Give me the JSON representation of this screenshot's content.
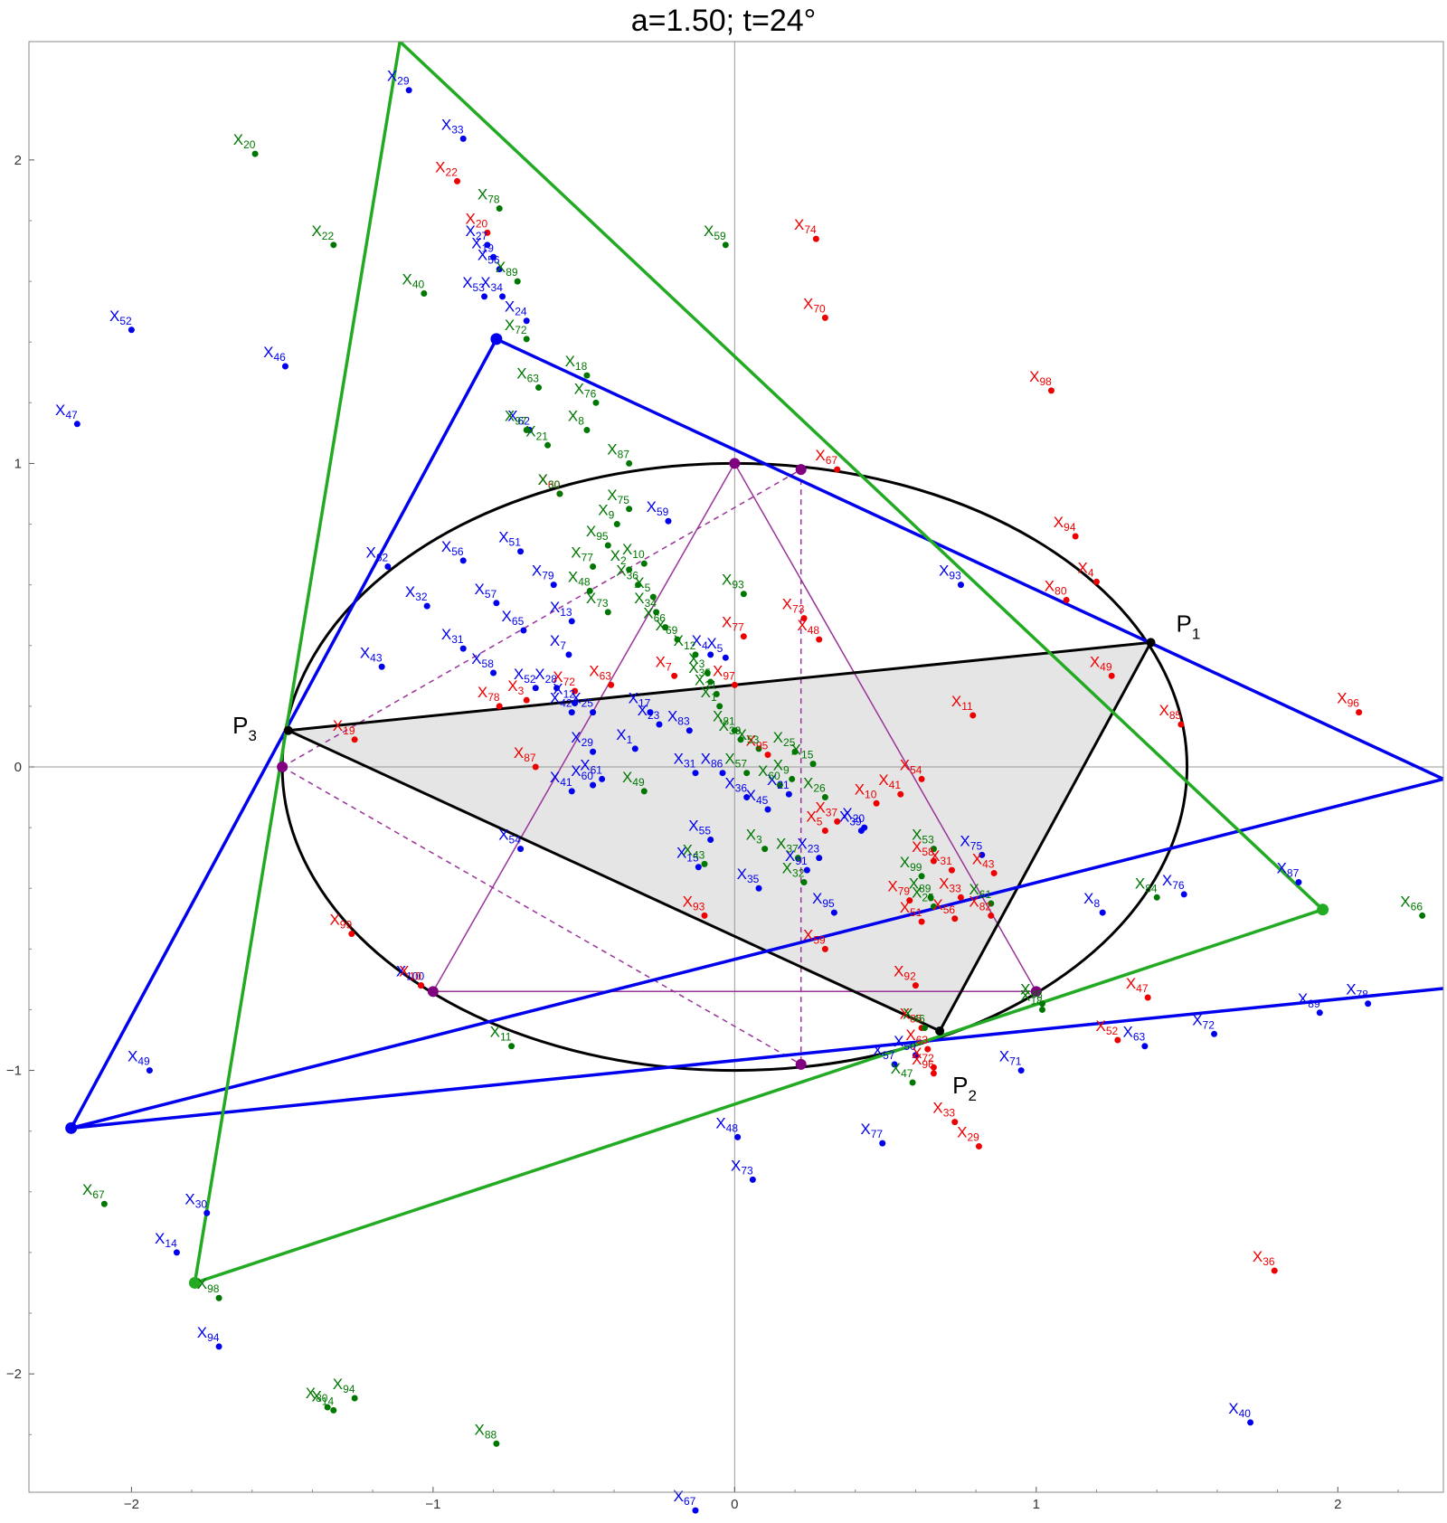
{
  "title": "a=1.50; t=24°",
  "axes": {
    "x_ticks": [
      {
        "v": -2,
        "label": "−2"
      },
      {
        "v": -1,
        "label": "−1"
      },
      {
        "v": 0,
        "label": "0"
      },
      {
        "v": 1,
        "label": "1"
      },
      {
        "v": 2,
        "label": "2"
      }
    ],
    "y_ticks": [
      {
        "v": 2,
        "label": "2"
      },
      {
        "v": 1,
        "label": "1"
      },
      {
        "v": 0,
        "label": "0"
      },
      {
        "v": -1,
        "label": "−1"
      },
      {
        "v": -2,
        "label": "−2"
      }
    ],
    "x_range": [
      -2.34,
      2.35
    ],
    "y_range": [
      -2.39,
      2.39
    ]
  },
  "colors": {
    "blue": "#0000ee",
    "red": "#ee0000",
    "green": "#007700",
    "black": "#000000",
    "purple": "#993399",
    "fill": "#e5e5e5",
    "axis": "#999999"
  },
  "vertices": [
    {
      "base": "P",
      "sub": "1",
      "x": 1.38,
      "y": 0.41
    },
    {
      "base": "P",
      "sub": "2",
      "x": 0.68,
      "y": -1.01
    },
    {
      "base": "P",
      "sub": "3",
      "x": -1.5,
      "y": 0.11
    }
  ],
  "ellipse": {
    "a": 1.5,
    "b": 1.0
  },
  "triangle": [
    [
      1.38,
      0.41
    ],
    [
      0.68,
      -0.87
    ],
    [
      -1.48,
      0.12
    ]
  ],
  "blue_triangle": [
    [
      -0.79,
      1.41
    ],
    [
      2.35,
      -0.04
    ],
    [
      -2.2,
      -1.19
    ]
  ],
  "blue_extra_line": [
    [
      -2.2,
      -1.19
    ],
    [
      2.35,
      -0.73
    ]
  ],
  "green_triangle": [
    [
      -1.11,
      2.39
    ],
    [
      1.95,
      -0.47
    ],
    [
      -1.79,
      -1.7
    ]
  ],
  "purple_triangle": [
    [
      0.0,
      1.0
    ],
    [
      1.0,
      -0.74
    ],
    [
      -1.0,
      -0.74
    ]
  ],
  "purple_dashed": [
    [
      [
        -1.5,
        0.0
      ],
      [
        0.22,
        0.98
      ]
    ],
    [
      [
        -1.5,
        0.0
      ],
      [
        0.22,
        -0.98
      ]
    ],
    [
      [
        0.22,
        0.98
      ],
      [
        0.22,
        -0.98
      ]
    ]
  ],
  "purple_points": [
    [
      0.0,
      1.0
    ],
    [
      0.22,
      0.98
    ],
    [
      1.0,
      -0.74
    ],
    [
      -1.0,
      -0.74
    ],
    [
      -1.5,
      0.0
    ],
    [
      0.22,
      -0.98
    ]
  ],
  "corner_dots_blue": [
    [
      -0.79,
      1.41
    ],
    [
      -2.2,
      -1.19
    ]
  ],
  "corner_dots_green": [
    [
      1.95,
      -0.47
    ],
    [
      -1.79,
      -1.7
    ]
  ],
  "black_dots": [
    [
      1.38,
      0.41
    ],
    [
      -1.48,
      0.12
    ],
    [
      0.68,
      -0.87
    ]
  ],
  "points": {
    "blue": [
      [
        "29",
        -1.08,
        2.23
      ],
      [
        "33",
        -0.9,
        2.07
      ],
      [
        "27",
        -0.82,
        1.72
      ],
      [
        "19",
        -0.8,
        1.68
      ],
      [
        "56",
        -0.78,
        1.64
      ],
      [
        "53",
        -0.83,
        1.55
      ],
      [
        "34",
        -0.77,
        1.55
      ],
      [
        "24",
        -0.69,
        1.47
      ],
      [
        "52",
        -2.0,
        1.44
      ],
      [
        "46",
        -1.49,
        1.32
      ],
      [
        "47",
        -2.18,
        1.13
      ],
      [
        "62",
        -0.68,
        1.11
      ],
      [
        "59",
        -0.22,
        0.81
      ],
      [
        "51",
        -0.71,
        0.71
      ],
      [
        "56",
        -0.9,
        0.68
      ],
      [
        "79",
        -0.6,
        0.6
      ],
      [
        "57",
        -0.79,
        0.54
      ],
      [
        "65",
        -0.7,
        0.45
      ],
      [
        "13",
        -0.54,
        0.48
      ],
      [
        "7",
        -0.55,
        0.37
      ],
      [
        "62",
        -1.15,
        0.66
      ],
      [
        "32",
        -1.02,
        0.53
      ],
      [
        "31",
        -0.9,
        0.39
      ],
      [
        "43",
        -1.17,
        0.33
      ],
      [
        "58",
        -0.8,
        0.31
      ],
      [
        "52",
        -0.66,
        0.26
      ],
      [
        "28",
        -0.59,
        0.26
      ],
      [
        "12",
        -0.53,
        0.21
      ],
      [
        "42",
        -0.54,
        0.18
      ],
      [
        "25",
        -0.47,
        0.18
      ],
      [
        "17",
        -0.28,
        0.18
      ],
      [
        "23",
        -0.25,
        0.14
      ],
      [
        "83",
        -0.15,
        0.12
      ],
      [
        "4",
        -0.08,
        0.37
      ],
      [
        "5",
        -0.03,
        0.36
      ],
      [
        "29",
        -0.47,
        0.05
      ],
      [
        "1",
        -0.33,
        0.06
      ],
      [
        "61",
        -0.44,
        -0.04
      ],
      [
        "60",
        -0.47,
        -0.06
      ],
      [
        "41",
        -0.54,
        -0.08
      ],
      [
        "31",
        -0.13,
        -0.02
      ],
      [
        "86",
        -0.04,
        -0.02
      ],
      [
        "36",
        0.04,
        -0.1
      ],
      [
        "45",
        0.11,
        -0.14
      ],
      [
        "21",
        0.18,
        -0.09
      ],
      [
        "55",
        -0.08,
        -0.24
      ],
      [
        "15",
        -0.12,
        -0.33
      ],
      [
        "35",
        0.08,
        -0.4
      ],
      [
        "54",
        -0.71,
        -0.27
      ],
      [
        "23",
        0.28,
        -0.3
      ],
      [
        "91",
        0.24,
        -0.34
      ],
      [
        "95",
        0.33,
        -0.48
      ],
      [
        "39",
        0.42,
        -0.21
      ],
      [
        "20",
        0.43,
        -0.2
      ],
      [
        "75",
        0.82,
        -0.29
      ],
      [
        "93",
        0.75,
        0.6
      ],
      [
        "8",
        1.22,
        -0.48
      ],
      [
        "76",
        1.49,
        -0.42
      ],
      [
        "87",
        1.87,
        -0.38
      ],
      [
        "78",
        2.1,
        -0.78
      ],
      [
        "89",
        1.94,
        -0.81
      ],
      [
        "72",
        1.59,
        -0.88
      ],
      [
        "63",
        1.36,
        -0.92
      ],
      [
        "71",
        0.95,
        -1.0
      ],
      [
        "57",
        0.53,
        -0.98
      ],
      [
        "50",
        0.6,
        -0.95
      ],
      [
        "48",
        0.01,
        -1.22
      ],
      [
        "73",
        0.06,
        -1.36
      ],
      [
        "77",
        0.49,
        -1.24
      ],
      [
        "67",
        -0.13,
        -2.45
      ],
      [
        "40",
        1.71,
        -2.16
      ],
      [
        "100",
        -1.04,
        -0.72
      ],
      [
        "30",
        -1.75,
        -1.47
      ],
      [
        "14",
        -1.85,
        -1.6
      ],
      [
        "94",
        -1.71,
        -1.91
      ],
      [
        "49",
        -1.94,
        -1.0
      ]
    ],
    "red": [
      [
        "22",
        -0.92,
        1.93
      ],
      [
        "20",
        -0.82,
        1.76
      ],
      [
        "74",
        0.27,
        1.74
      ],
      [
        "70",
        0.3,
        1.48
      ],
      [
        "98",
        1.05,
        1.24
      ],
      [
        "60",
        -0.58,
        0.9
      ],
      [
        "67",
        0.34,
        0.98
      ],
      [
        "94",
        1.13,
        0.76
      ],
      [
        "4",
        1.2,
        0.61
      ],
      [
        "80",
        1.1,
        0.55
      ],
      [
        "73",
        0.23,
        0.49
      ],
      [
        "48",
        0.28,
        0.42
      ],
      [
        "77",
        0.03,
        0.43
      ],
      [
        "7",
        -0.2,
        0.3
      ],
      [
        "97",
        0.0,
        0.27
      ],
      [
        "49",
        1.25,
        0.3
      ],
      [
        "96",
        2.07,
        0.18
      ],
      [
        "85",
        1.48,
        0.14
      ],
      [
        "11",
        0.79,
        0.17
      ],
      [
        "19",
        -1.26,
        0.09
      ],
      [
        "78",
        -0.78,
        0.2
      ],
      [
        "3",
        -0.69,
        0.22
      ],
      [
        "72",
        -0.53,
        0.25
      ],
      [
        "63",
        -0.41,
        0.27
      ],
      [
        "87",
        -0.66,
        0.0
      ],
      [
        "95",
        0.11,
        0.04
      ],
      [
        "54",
        0.62,
        -0.04
      ],
      [
        "41",
        0.55,
        -0.09
      ],
      [
        "10",
        0.47,
        -0.12
      ],
      [
        "37",
        0.34,
        -0.18
      ],
      [
        "5",
        0.3,
        -0.21
      ],
      [
        "58",
        0.66,
        -0.31
      ],
      [
        "31",
        0.72,
        -0.34
      ],
      [
        "43",
        0.86,
        -0.35
      ],
      [
        "33",
        0.75,
        -0.43
      ],
      [
        "79",
        0.58,
        -0.44
      ],
      [
        "51",
        0.62,
        -0.51
      ],
      [
        "56",
        0.73,
        -0.5
      ],
      [
        "82",
        0.85,
        -0.49
      ],
      [
        "59",
        0.3,
        -0.6
      ],
      [
        "93",
        -0.1,
        -0.49
      ],
      [
        "92",
        0.6,
        -0.72
      ],
      [
        "99",
        -1.27,
        -0.55
      ],
      [
        "47",
        1.37,
        -0.76
      ],
      [
        "52",
        1.27,
        -0.9
      ],
      [
        "63",
        0.64,
        -0.93
      ],
      [
        "33",
        0.73,
        -1.17
      ],
      [
        "29",
        0.81,
        -1.25
      ],
      [
        "36",
        1.79,
        -1.66
      ],
      [
        "10",
        -1.04,
        -0.72
      ],
      [
        "85",
        0.62,
        -0.86
      ],
      [
        "72",
        0.66,
        -0.99
      ],
      [
        "96",
        0.66,
        -1.01
      ]
    ],
    "green": [
      [
        "20",
        -1.59,
        2.02
      ],
      [
        "22",
        -1.33,
        1.72
      ],
      [
        "78",
        -0.78,
        1.84
      ],
      [
        "59",
        -0.03,
        1.72
      ],
      [
        "40",
        -1.03,
        1.56
      ],
      [
        "89",
        -0.72,
        1.6
      ],
      [
        "72",
        -0.69,
        1.41
      ],
      [
        "18",
        -0.49,
        1.29
      ],
      [
        "63",
        -0.65,
        1.25
      ],
      [
        "76",
        -0.46,
        1.2
      ],
      [
        "8",
        -0.49,
        1.11
      ],
      [
        "97",
        -0.69,
        1.11
      ],
      [
        "21",
        -0.62,
        1.06
      ],
      [
        "87",
        -0.35,
        1.0
      ],
      [
        "30",
        -0.58,
        0.9
      ],
      [
        "75",
        -0.35,
        0.85
      ],
      [
        "9",
        -0.39,
        0.8
      ],
      [
        "95",
        -0.42,
        0.73
      ],
      [
        "77",
        -0.47,
        0.66
      ],
      [
        "10",
        -0.3,
        0.67
      ],
      [
        "2",
        -0.35,
        0.65
      ],
      [
        "48",
        -0.48,
        0.58
      ],
      [
        "36",
        -0.32,
        0.6
      ],
      [
        "73",
        -0.42,
        0.51
      ],
      [
        "93",
        0.03,
        0.57
      ],
      [
        "5",
        -0.27,
        0.56
      ],
      [
        "34",
        -0.26,
        0.51
      ],
      [
        "66",
        -0.23,
        0.46
      ],
      [
        "69",
        -0.19,
        0.42
      ],
      [
        "12",
        -0.13,
        0.37
      ],
      [
        "3",
        -0.09,
        0.31
      ],
      [
        "35",
        -0.08,
        0.28
      ],
      [
        "21",
        -0.06,
        0.24
      ],
      [
        "1",
        -0.05,
        0.2
      ],
      [
        "81",
        0.0,
        0.12
      ],
      [
        "39",
        0.02,
        0.09
      ],
      [
        "53",
        0.08,
        0.06
      ],
      [
        "25",
        0.2,
        0.05
      ],
      [
        "15",
        0.26,
        0.01
      ],
      [
        "57",
        0.04,
        -0.02
      ],
      [
        "60",
        0.15,
        -0.06
      ],
      [
        "9",
        0.19,
        -0.04
      ],
      [
        "26",
        0.3,
        -0.1
      ],
      [
        "43",
        -0.1,
        -0.32
      ],
      [
        "3",
        0.1,
        -0.27
      ],
      [
        "37",
        0.21,
        -0.3
      ],
      [
        "32",
        0.23,
        -0.38
      ],
      [
        "49",
        -0.3,
        -0.08
      ],
      [
        "53",
        0.66,
        -0.27
      ],
      [
        "99",
        0.62,
        -0.36
      ],
      [
        "89",
        0.65,
        -0.43
      ],
      [
        "25",
        0.66,
        -0.46
      ],
      [
        "61",
        0.85,
        -0.45
      ],
      [
        "84",
        1.4,
        -0.43
      ],
      [
        "66",
        2.28,
        -0.49
      ],
      [
        "46",
        0.63,
        -0.86
      ],
      [
        "48",
        1.02,
        -0.78
      ],
      [
        "18",
        1.02,
        -0.8
      ],
      [
        "47",
        0.59,
        -1.04
      ],
      [
        "11",
        -0.74,
        -0.92
      ],
      [
        "67",
        -2.09,
        -1.44
      ],
      [
        "98",
        -1.71,
        -1.75
      ],
      [
        "14",
        -1.33,
        -2.12
      ],
      [
        "80",
        -1.35,
        -2.11
      ],
      [
        "94",
        -1.26,
        -2.08
      ],
      [
        "88",
        -0.79,
        -2.23
      ]
    ]
  }
}
